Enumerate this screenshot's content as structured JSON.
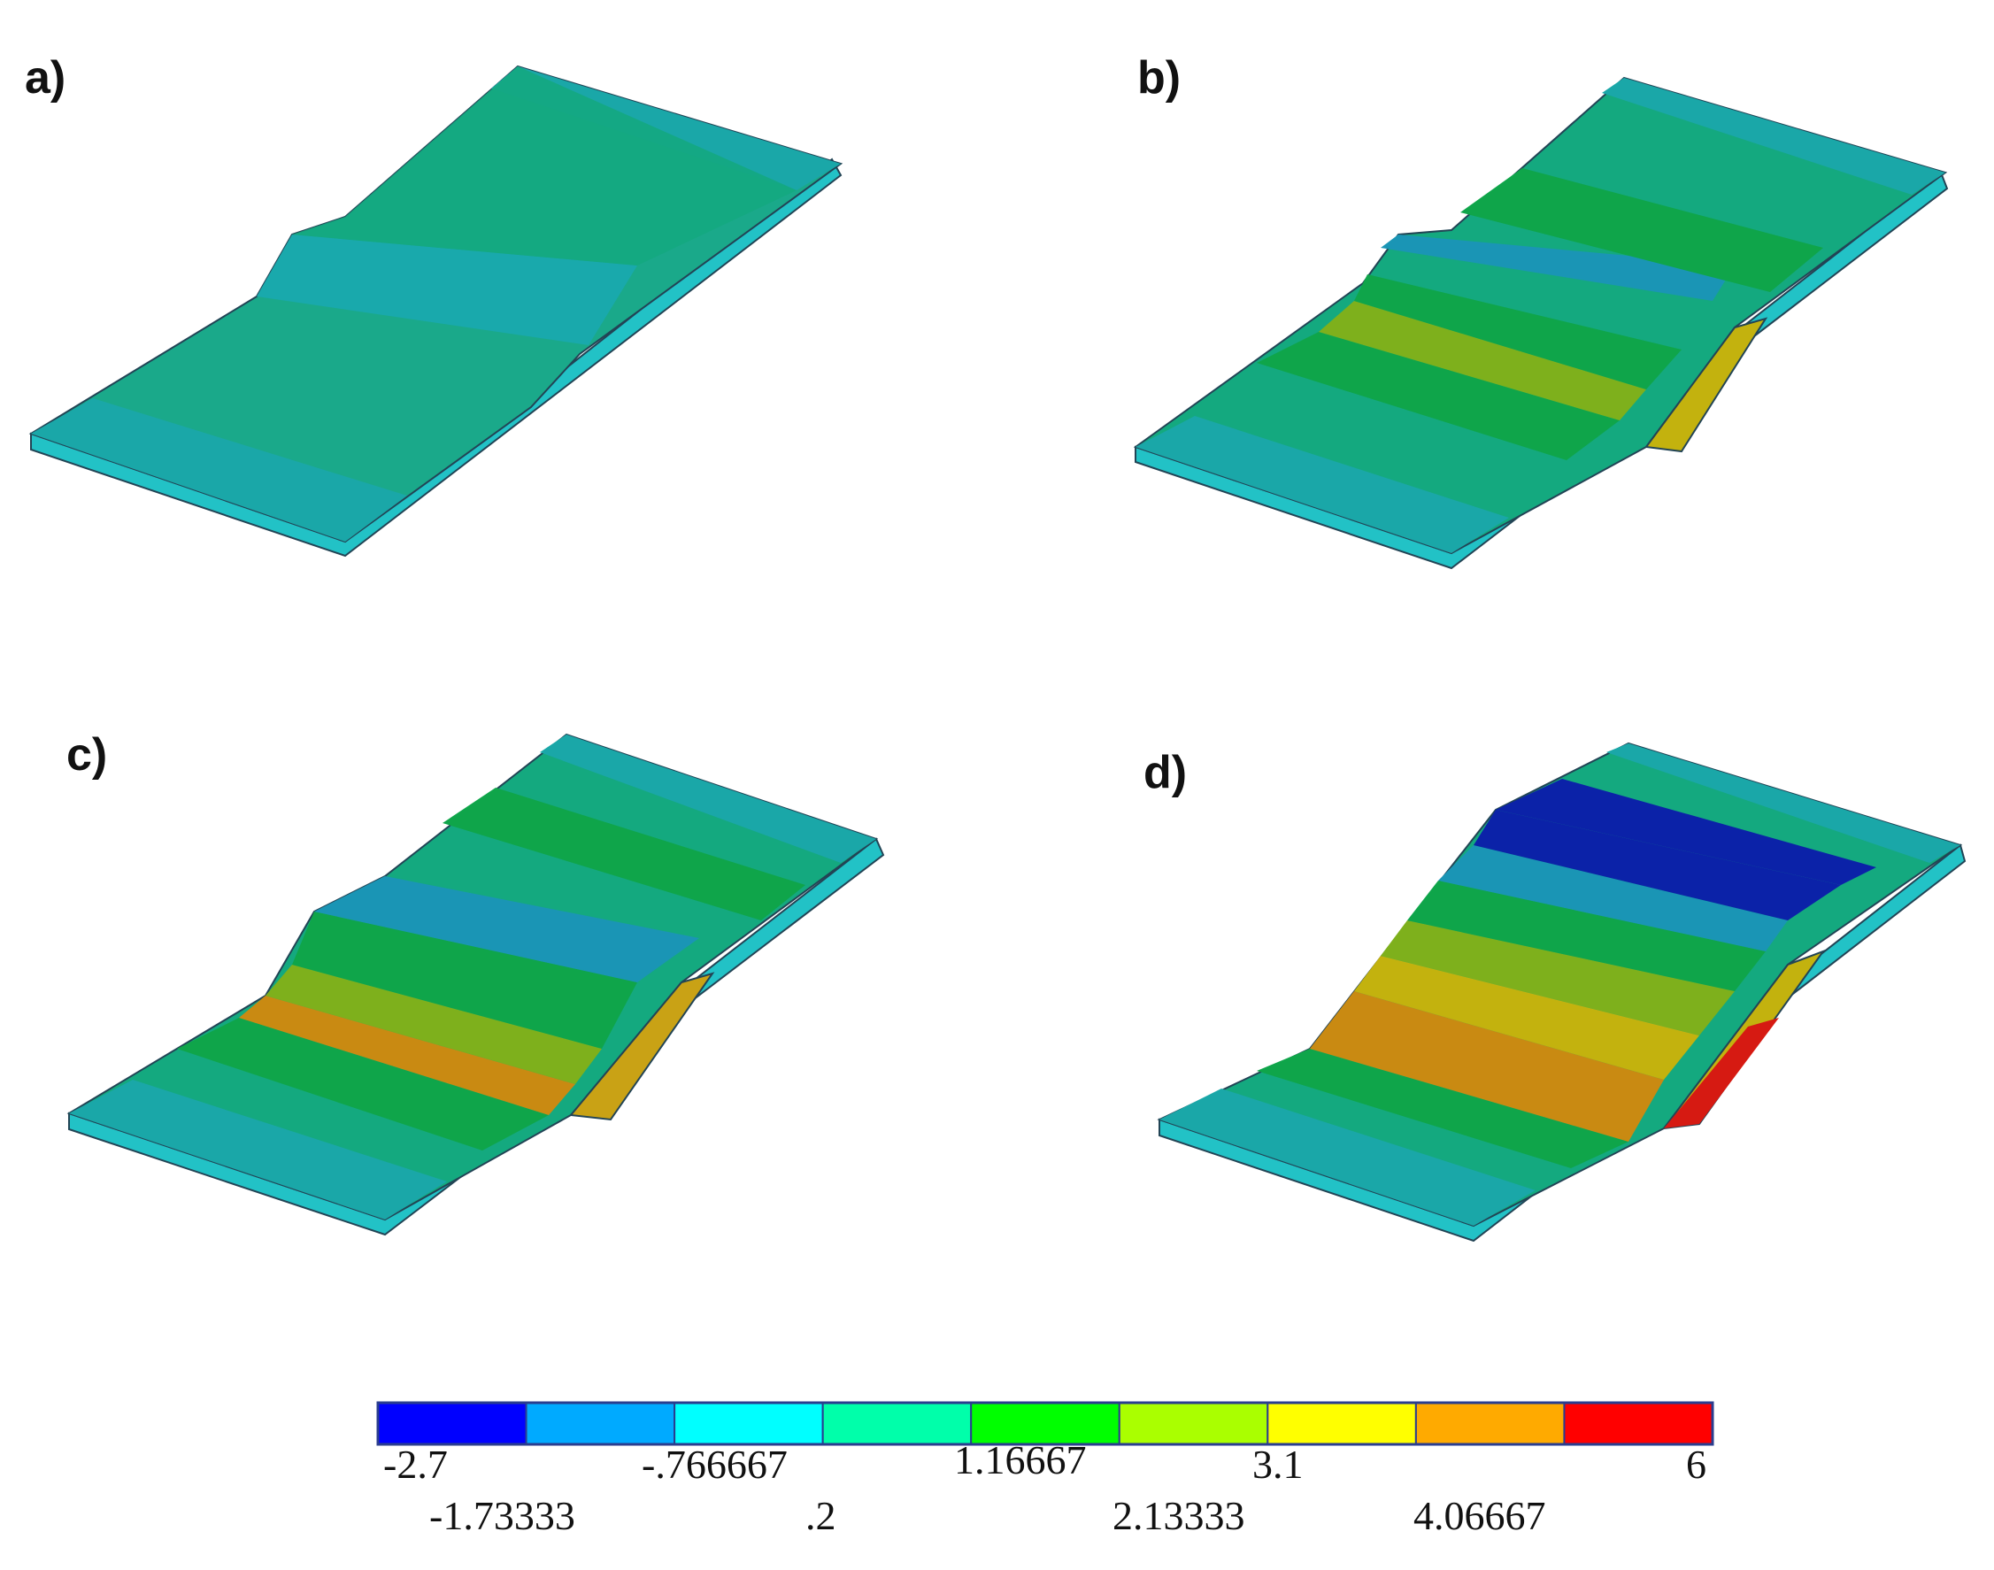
{
  "panels": [
    {
      "label": "a)",
      "key": "a"
    },
    {
      "label": "b)",
      "key": "b"
    },
    {
      "label": "c)",
      "key": "c"
    },
    {
      "label": "d)",
      "key": "d"
    }
  ],
  "legend": {
    "colors": [
      "#0000ff",
      "#00aaff",
      "#00ffff",
      "#00ffaa",
      "#00ff00",
      "#aaff00",
      "#ffff00",
      "#ffaa00",
      "#ff0000"
    ],
    "ticks_top": [
      "-2.7",
      "-.766667",
      "1.16667",
      "3.1",
      "6"
    ],
    "ticks_bottom": [
      "-1.73333",
      ".2",
      "2.13333",
      "4.06667"
    ]
  },
  "surface_colors": {
    "teal": "#1aa7a0",
    "sea_green": "#14a97f",
    "green": "#0fa54a",
    "cyan_blue": "#1a95b5",
    "blue": "#0b22a8",
    "lime": "#7eb01c",
    "yellow": "#c3b20e",
    "orange": "#c98a12",
    "red": "#d61a12",
    "base_plate": "#22c2c6"
  }
}
